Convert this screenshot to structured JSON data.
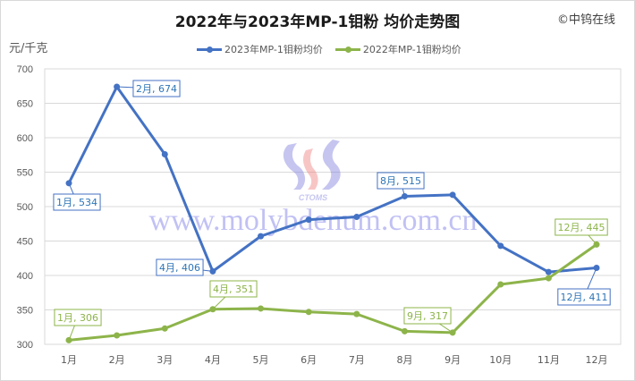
{
  "title": "2022年与2023年MP-1钼粉 均价走势图",
  "copyright": "©中钨在线",
  "unit_label": "元/千克",
  "watermark": {
    "url_text": "www.molybdenum.com.cn",
    "logo_text": "CTOMS"
  },
  "legend": [
    {
      "label": "2023年MP-1钼粉均价",
      "color": "#4472c4"
    },
    {
      "label": "2022年MP-1钼粉均价",
      "color": "#8db44a"
    }
  ],
  "chart_data": {
    "type": "line",
    "title": "2022年与2023年MP-1钼粉 均价走势图",
    "xlabel": "",
    "ylabel": "元/千克",
    "ylim": [
      300,
      700
    ],
    "yticks": [
      300,
      350,
      400,
      450,
      500,
      550,
      600,
      650,
      700
    ],
    "grid": true,
    "legend_position": "top",
    "categories": [
      "1月",
      "2月",
      "3月",
      "4月",
      "5月",
      "6月",
      "7月",
      "8月",
      "9月",
      "10月",
      "11月",
      "12月"
    ],
    "series": [
      {
        "name": "2023年MP-1钼粉均价",
        "color": "#4472c4",
        "values": [
          534,
          674,
          576,
          406,
          457,
          481,
          485,
          515,
          517,
          443,
          405,
          411
        ],
        "data_labels": [
          {
            "index": 0,
            "text": "1月, 534"
          },
          {
            "index": 1,
            "text": "2月, 674"
          },
          {
            "index": 3,
            "text": "4月, 406"
          },
          {
            "index": 7,
            "text": "8月, 515"
          },
          {
            "index": 11,
            "text": "12月, 411"
          }
        ]
      },
      {
        "name": "2022年MP-1钼粉均价",
        "color": "#8db44a",
        "values": [
          306,
          313,
          323,
          351,
          352,
          347,
          344,
          319,
          317,
          387,
          396,
          445
        ],
        "data_labels": [
          {
            "index": 0,
            "text": "1月, 306"
          },
          {
            "index": 3,
            "text": "4月, 351"
          },
          {
            "index": 8,
            "text": "9月, 317"
          },
          {
            "index": 11,
            "text": "12月, 445"
          }
        ]
      }
    ]
  }
}
